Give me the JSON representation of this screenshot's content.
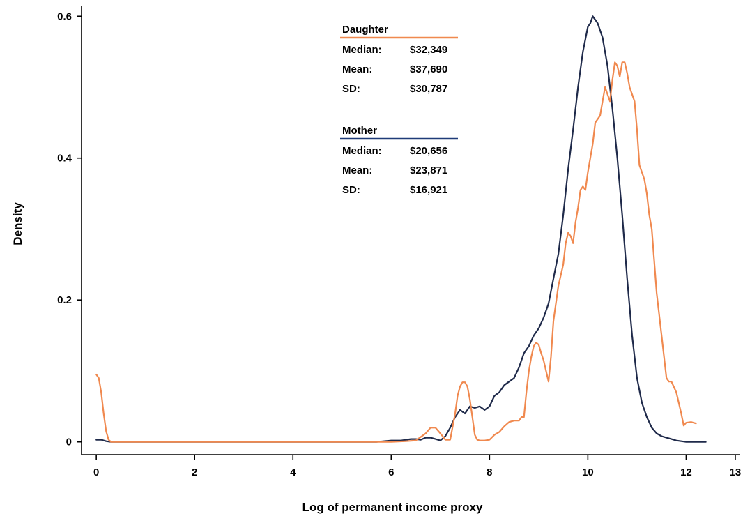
{
  "chart_data": {
    "type": "line",
    "title": "",
    "xlabel": "Log of permanent income proxy",
    "ylabel": "Density",
    "xlim": [
      -0.3,
      13.1
    ],
    "ylim": [
      -0.018,
      0.615
    ],
    "xticks": [
      0,
      2,
      4,
      6,
      8,
      10,
      12,
      13
    ],
    "yticks": [
      0,
      0.2,
      0.4,
      0.6
    ],
    "grid": false,
    "series": [
      {
        "name": "Daughter",
        "color": "#f0894f",
        "x": [
          0.0,
          0.05,
          0.1,
          0.15,
          0.2,
          0.25,
          0.3,
          0.5,
          1,
          2,
          3,
          4,
          5,
          6,
          6.3,
          6.5,
          6.7,
          6.8,
          6.9,
          7.0,
          7.1,
          7.2,
          7.3,
          7.35,
          7.4,
          7.45,
          7.5,
          7.55,
          7.6,
          7.65,
          7.7,
          7.75,
          7.8,
          7.85,
          7.9,
          8.0,
          8.1,
          8.2,
          8.3,
          8.4,
          8.5,
          8.6,
          8.65,
          8.7,
          8.75,
          8.8,
          8.85,
          8.9,
          8.95,
          9.0,
          9.05,
          9.1,
          9.15,
          9.2,
          9.25,
          9.3,
          9.4,
          9.5,
          9.55,
          9.6,
          9.65,
          9.7,
          9.75,
          9.8,
          9.85,
          9.9,
          9.95,
          10.0,
          10.05,
          10.1,
          10.15,
          10.2,
          10.25,
          10.3,
          10.35,
          10.4,
          10.45,
          10.5,
          10.55,
          10.6,
          10.65,
          10.7,
          10.75,
          10.8,
          10.85,
          10.9,
          10.95,
          11.0,
          11.05,
          11.1,
          11.15,
          11.2,
          11.25,
          11.3,
          11.4,
          11.5,
          11.6,
          11.65,
          11.7,
          11.8,
          11.9,
          11.95,
          12.0,
          12.1,
          12.2
        ],
        "y": [
          0.095,
          0.09,
          0.07,
          0.04,
          0.015,
          0.003,
          0.0,
          0.0,
          0.0,
          0.0,
          0.0,
          0.0,
          0.0,
          0.0,
          0.001,
          0.002,
          0.012,
          0.02,
          0.02,
          0.012,
          0.003,
          0.003,
          0.04,
          0.065,
          0.078,
          0.084,
          0.084,
          0.078,
          0.06,
          0.035,
          0.01,
          0.003,
          0.002,
          0.002,
          0.002,
          0.003,
          0.01,
          0.014,
          0.022,
          0.028,
          0.03,
          0.03,
          0.035,
          0.035,
          0.07,
          0.1,
          0.12,
          0.135,
          0.14,
          0.137,
          0.125,
          0.115,
          0.1,
          0.085,
          0.12,
          0.17,
          0.22,
          0.25,
          0.28,
          0.295,
          0.29,
          0.28,
          0.31,
          0.33,
          0.355,
          0.36,
          0.355,
          0.38,
          0.4,
          0.42,
          0.45,
          0.455,
          0.46,
          0.48,
          0.5,
          0.49,
          0.48,
          0.51,
          0.535,
          0.53,
          0.515,
          0.535,
          0.535,
          0.52,
          0.5,
          0.49,
          0.48,
          0.44,
          0.39,
          0.38,
          0.37,
          0.35,
          0.32,
          0.3,
          0.21,
          0.15,
          0.09,
          0.085,
          0.085,
          0.07,
          0.04,
          0.023,
          0.027,
          0.028,
          0.026
        ]
      },
      {
        "name": "Mother",
        "color": "#1f2a4a",
        "x": [
          0.0,
          0.1,
          0.2,
          0.3,
          1,
          2,
          3,
          4,
          5,
          5.7,
          6.0,
          6.2,
          6.4,
          6.5,
          6.6,
          6.7,
          6.8,
          6.9,
          7.0,
          7.1,
          7.2,
          7.3,
          7.4,
          7.5,
          7.6,
          7.7,
          7.8,
          7.9,
          8.0,
          8.1,
          8.2,
          8.3,
          8.4,
          8.5,
          8.6,
          8.7,
          8.8,
          8.9,
          9.0,
          9.1,
          9.2,
          9.3,
          9.4,
          9.5,
          9.6,
          9.7,
          9.8,
          9.9,
          10.0,
          10.05,
          10.1,
          10.15,
          10.2,
          10.25,
          10.3,
          10.4,
          10.5,
          10.6,
          10.7,
          10.8,
          10.9,
          11.0,
          11.1,
          11.2,
          11.3,
          11.4,
          11.5,
          11.6,
          11.7,
          11.8,
          11.9,
          12.0,
          12.2,
          12.4
        ],
        "y": [
          0.003,
          0.003,
          0.001,
          0.0,
          0.0,
          0.0,
          0.0,
          0.0,
          0.0,
          0.0,
          0.002,
          0.002,
          0.004,
          0.004,
          0.003,
          0.006,
          0.006,
          0.004,
          0.002,
          0.008,
          0.02,
          0.035,
          0.045,
          0.04,
          0.05,
          0.048,
          0.05,
          0.045,
          0.05,
          0.065,
          0.07,
          0.08,
          0.085,
          0.09,
          0.105,
          0.125,
          0.135,
          0.15,
          0.16,
          0.175,
          0.195,
          0.23,
          0.265,
          0.32,
          0.385,
          0.44,
          0.5,
          0.55,
          0.585,
          0.59,
          0.6,
          0.595,
          0.59,
          0.58,
          0.57,
          0.53,
          0.47,
          0.4,
          0.32,
          0.23,
          0.15,
          0.09,
          0.055,
          0.035,
          0.02,
          0.012,
          0.008,
          0.006,
          0.004,
          0.002,
          0.001,
          0.0,
          0.0,
          0.0
        ]
      }
    ]
  },
  "legend": {
    "blocks": [
      {
        "name": "Daughter",
        "color": "#f0894f",
        "rows": [
          {
            "label": "Median:",
            "value": "$32,349"
          },
          {
            "label": "Mean:",
            "value": "$37,690"
          },
          {
            "label": "SD:",
            "value": "$30,787"
          }
        ]
      },
      {
        "name": "Mother",
        "color": "#1f3b78",
        "rows": [
          {
            "label": "Median:",
            "value": "$20,656"
          },
          {
            "label": "Mean:",
            "value": "$23,871"
          },
          {
            "label": "SD:",
            "value": "$16,921"
          }
        ]
      }
    ]
  }
}
